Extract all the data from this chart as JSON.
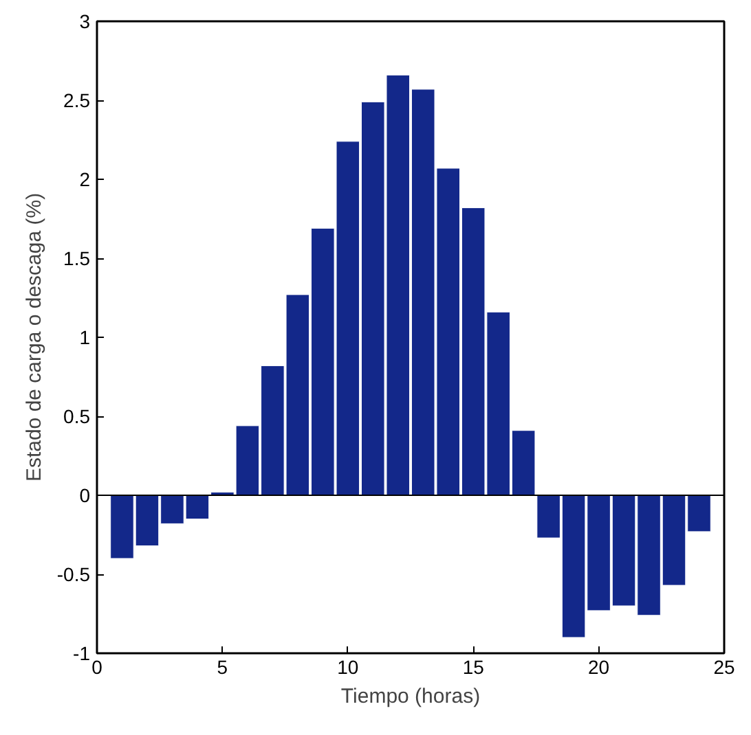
{
  "chart_data": {
    "type": "bar",
    "xlabel": "Tiempo (horas)",
    "ylabel": "Estado de carga o descaga (%)",
    "x": [
      1,
      2,
      3,
      4,
      5,
      6,
      7,
      8,
      9,
      10,
      11,
      12,
      13,
      14,
      15,
      16,
      17,
      18,
      19,
      20,
      21,
      22,
      23,
      24
    ],
    "values": [
      -0.4,
      -0.32,
      -0.18,
      -0.15,
      0.02,
      0.44,
      0.82,
      1.27,
      1.69,
      2.24,
      2.49,
      2.66,
      2.57,
      2.07,
      1.82,
      1.16,
      0.41,
      -0.27,
      -0.9,
      -0.73,
      -0.7,
      -0.76,
      -0.57,
      -0.23
    ],
    "color": "#13288a",
    "xlim": [
      0,
      25
    ],
    "xticks": [
      0,
      5,
      10,
      15,
      20,
      25
    ],
    "ylim": [
      -1,
      3
    ],
    "yticks": [
      -1,
      -0.5,
      0,
      0.5,
      1,
      1.5,
      2,
      2.5,
      3
    ],
    "ref_lines": [
      {
        "axis": "y",
        "value": 0,
        "color": "#000000"
      }
    ],
    "grid": false
  }
}
